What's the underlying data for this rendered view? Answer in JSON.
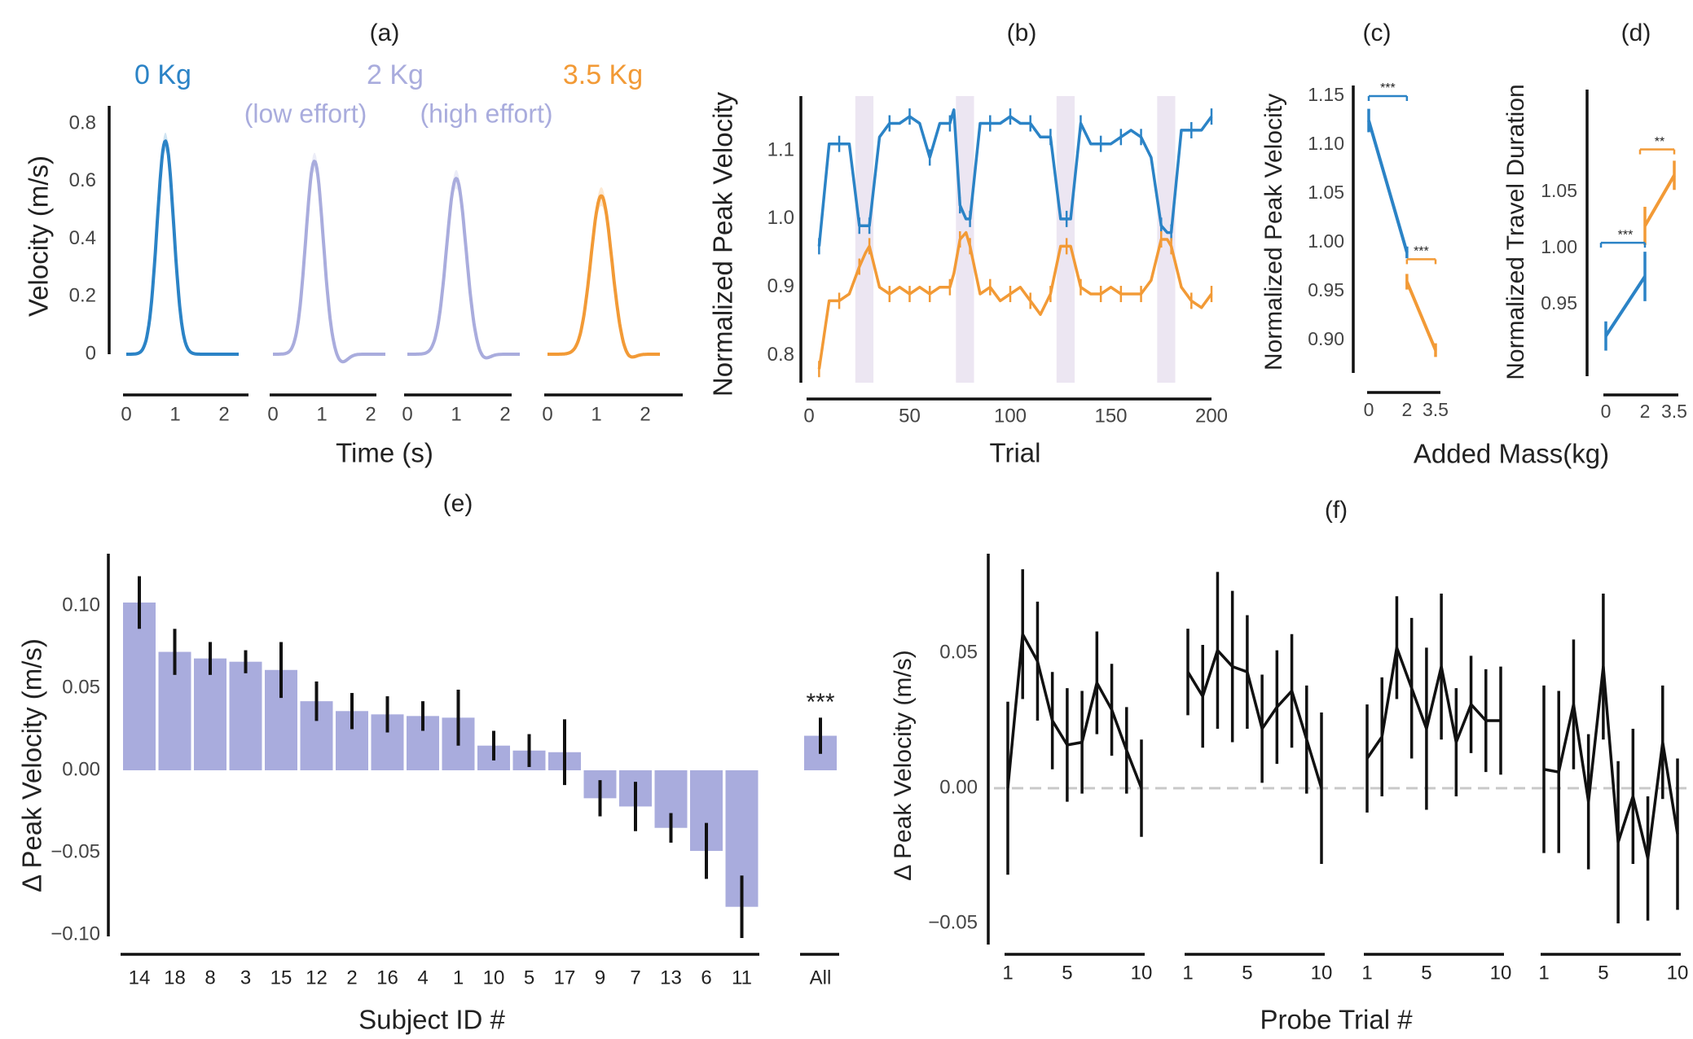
{
  "colors": {
    "blue": "#2b83c6",
    "lavender": "#a9acdd",
    "orange": "#f29a36",
    "bar": "#a9acdd",
    "black": "#111111",
    "grey": "#c8c8c8",
    "shade": "#ece6f2"
  },
  "chart_data": [
    {
      "panel": "(a)",
      "type": "line",
      "xlabel": "Time (s)",
      "ylabel": "Velocity (m/s)",
      "yticks": [
        "0",
        "0.2",
        "0.4",
        "0.6",
        "0.8"
      ],
      "xticks": [
        "0",
        "1",
        "2"
      ],
      "ylim": [
        0,
        0.8
      ],
      "xlim": [
        0,
        2.5
      ],
      "series": [
        {
          "name": "0 Kg",
          "subtitle": "",
          "color": "#2b83c6",
          "peak": 0.74,
          "peak_time": 0.8,
          "width": 0.24,
          "undershoot": 0.0
        },
        {
          "name": "2 Kg",
          "subtitle": "(low effort)",
          "color": "#a9acdd",
          "peak": 0.67,
          "peak_time": 0.85,
          "width": 0.25,
          "undershoot": 0.03
        },
        {
          "name": "",
          "subtitle": "(high effort)",
          "color": "#a9acdd",
          "peak": 0.61,
          "peak_time": 1.0,
          "width": 0.28,
          "undershoot": 0.02
        },
        {
          "name": "3.5 Kg",
          "subtitle": "",
          "color": "#f29a36",
          "peak": 0.55,
          "peak_time": 1.1,
          "width": 0.3,
          "undershoot": 0.02
        }
      ]
    },
    {
      "panel": "(b)",
      "type": "line",
      "xlabel": "Trial",
      "ylabel": "Normalized Peak Velocity",
      "xticks": [
        "0",
        "50",
        "100",
        "150",
        "200"
      ],
      "yticks": [
        "0.8",
        "0.9",
        "1.0",
        "1.1"
      ],
      "xlim": [
        0,
        200
      ],
      "ylim": [
        0.76,
        1.18
      ],
      "shaded_ranges": [
        [
          23,
          32
        ],
        [
          73,
          82
        ],
        [
          123,
          132
        ],
        [
          173,
          182
        ]
      ],
      "series": [
        {
          "name": "0 Kg",
          "color": "#2b83c6",
          "x": [
            5,
            10,
            15,
            20,
            25,
            28,
            30,
            35,
            40,
            45,
            50,
            55,
            60,
            65,
            70,
            72,
            75,
            78,
            80,
            85,
            90,
            95,
            100,
            105,
            110,
            115,
            120,
            125,
            128,
            130,
            135,
            140,
            145,
            150,
            155,
            160,
            165,
            170,
            175,
            178,
            180,
            185,
            190,
            195,
            200
          ],
          "y": [
            0.96,
            1.11,
            1.11,
            1.11,
            0.99,
            0.99,
            0.99,
            1.12,
            1.14,
            1.14,
            1.15,
            1.14,
            1.09,
            1.14,
            1.14,
            1.16,
            1.02,
            1.0,
            1.0,
            1.14,
            1.14,
            1.14,
            1.15,
            1.14,
            1.14,
            1.12,
            1.12,
            1.0,
            1.0,
            1.0,
            1.14,
            1.11,
            1.11,
            1.11,
            1.12,
            1.13,
            1.12,
            1.09,
            0.99,
            0.98,
            0.98,
            1.13,
            1.13,
            1.13,
            1.15
          ]
        },
        {
          "name": "3.5 Kg",
          "color": "#f29a36",
          "x": [
            5,
            10,
            15,
            20,
            25,
            28,
            30,
            35,
            40,
            45,
            50,
            55,
            60,
            65,
            70,
            72,
            75,
            78,
            80,
            85,
            90,
            95,
            100,
            105,
            110,
            115,
            120,
            125,
            128,
            130,
            135,
            140,
            145,
            150,
            155,
            160,
            165,
            170,
            175,
            178,
            180,
            185,
            190,
            195,
            200
          ],
          "y": [
            0.78,
            0.88,
            0.88,
            0.89,
            0.93,
            0.95,
            0.96,
            0.9,
            0.89,
            0.9,
            0.89,
            0.9,
            0.89,
            0.9,
            0.9,
            0.92,
            0.97,
            0.98,
            0.96,
            0.89,
            0.9,
            0.88,
            0.89,
            0.9,
            0.88,
            0.86,
            0.89,
            0.96,
            0.96,
            0.96,
            0.9,
            0.89,
            0.89,
            0.9,
            0.89,
            0.89,
            0.89,
            0.91,
            0.97,
            0.97,
            0.96,
            0.9,
            0.88,
            0.87,
            0.89
          ]
        }
      ]
    },
    {
      "panel": "(c)",
      "type": "line",
      "xlabel": "",
      "ylabel": "Normalized Peak Velocity",
      "xticks": [
        "0",
        "2",
        "3.5"
      ],
      "yticks": [
        "0.90",
        "0.95",
        "1.00",
        "1.05",
        "1.10",
        "1.15"
      ],
      "xlim": [
        0,
        3.5
      ],
      "ylim": [
        0.87,
        1.155
      ],
      "series": [
        {
          "name": "0 Kg to 2 Kg",
          "color": "#2b83c6",
          "x": [
            0,
            2
          ],
          "y": [
            1.125,
            0.99
          ],
          "err": [
            0.012,
            0.006
          ]
        },
        {
          "name": "2 Kg to 3.5 Kg",
          "color": "#f29a36",
          "x": [
            2,
            3.5
          ],
          "y": [
            0.96,
            0.89
          ],
          "err": [
            0.008,
            0.007
          ]
        }
      ],
      "annotations": [
        {
          "text": "***",
          "x1": 0,
          "x2": 2,
          "y": 1.15,
          "color": "#2b83c6"
        },
        {
          "text": "***",
          "x1": 2,
          "x2": 3.5,
          "y": 0.983,
          "color": "#f29a36"
        }
      ]
    },
    {
      "panel": "(d)",
      "type": "line",
      "xlabel": "Added Mass(kg)",
      "ylabel": "Normalized Travel Duration",
      "xticks": [
        "0",
        "2",
        "3.5"
      ],
      "yticks": [
        "0.95",
        "1.00",
        "1.05"
      ],
      "xlim": [
        0,
        3.5
      ],
      "ylim": [
        0.9,
        1.105
      ],
      "series": [
        {
          "name": "0 Kg to 2 Kg",
          "color": "#2b83c6",
          "x": [
            0,
            2
          ],
          "y": [
            0.922,
            0.975
          ],
          "err": [
            0.013,
            0.022
          ]
        },
        {
          "name": "2 Kg to 3.5 Kg",
          "color": "#f29a36",
          "x": [
            2,
            3.5
          ],
          "y": [
            1.02,
            1.065
          ],
          "err": [
            0.017,
            0.013
          ]
        }
      ],
      "annotations": [
        {
          "text": "***",
          "x1": 0,
          "x2": 2,
          "y": 1.005,
          "color": "#2b83c6"
        },
        {
          "text": "**",
          "x1": 2,
          "x2": 3.5,
          "y": 1.088,
          "color": "#f29a36"
        }
      ]
    },
    {
      "panel": "(e)",
      "type": "bar",
      "xlabel": "Subject ID #",
      "ylabel": "Δ Peak Velocity (m/s)",
      "yticks": [
        "−0.10",
        "−0.05",
        "0.00",
        "0.05",
        "0.10"
      ],
      "ylim": [
        -0.105,
        0.13
      ],
      "categories": [
        "14",
        "18",
        "8",
        "3",
        "15",
        "12",
        "2",
        "16",
        "4",
        "1",
        "10",
        "5",
        "17",
        "9",
        "7",
        "13",
        "6",
        "11"
      ],
      "values": [
        0.102,
        0.072,
        0.068,
        0.066,
        0.061,
        0.042,
        0.036,
        0.034,
        0.033,
        0.032,
        0.015,
        0.012,
        0.011,
        -0.017,
        -0.022,
        -0.035,
        -0.049,
        -0.083
      ],
      "errors": [
        0.016,
        0.014,
        0.01,
        0.007,
        0.017,
        0.012,
        0.011,
        0.011,
        0.009,
        0.017,
        0.009,
        0.01,
        0.02,
        0.011,
        0.015,
        0.009,
        0.017,
        0.019
      ],
      "summary": {
        "label": "All",
        "value": 0.021,
        "error": 0.011,
        "significance": "***"
      }
    },
    {
      "panel": "(f)",
      "type": "line",
      "xlabel": "Probe Trial #",
      "ylabel": "Δ Peak Velocity (m/s)",
      "yticks": [
        "−0.05",
        "0.00",
        "0.05"
      ],
      "xticks": [
        "1",
        "5",
        "10"
      ],
      "ylim": [
        -0.055,
        0.085
      ],
      "xlim": [
        1,
        10
      ],
      "reference_line": 0,
      "blocks": [
        {
          "y": [
            0.0,
            0.057,
            0.047,
            0.025,
            0.016,
            0.017,
            0.039,
            0.029,
            0.014,
            0.0
          ],
          "err": [
            0.032,
            0.024,
            0.022,
            0.018,
            0.021,
            0.019,
            0.019,
            0.017,
            0.016,
            0.018
          ]
        },
        {
          "y": [
            0.043,
            0.034,
            0.051,
            0.045,
            0.043,
            0.022,
            0.03,
            0.036,
            0.018,
            0.0
          ],
          "err": [
            0.016,
            0.019,
            0.029,
            0.028,
            0.021,
            0.02,
            0.021,
            0.021,
            0.02,
            0.028
          ]
        },
        {
          "y": [
            0.011,
            0.019,
            0.052,
            0.037,
            0.022,
            0.045,
            0.017,
            0.031,
            0.025,
            0.025
          ],
          "err": [
            0.02,
            0.022,
            0.019,
            0.026,
            0.03,
            0.027,
            0.02,
            0.018,
            0.019,
            0.02
          ]
        },
        {
          "y": [
            0.007,
            0.006,
            0.031,
            -0.005,
            0.045,
            -0.02,
            -0.003,
            -0.026,
            0.017,
            -0.017
          ],
          "err": [
            0.031,
            0.03,
            0.024,
            0.025,
            0.027,
            0.03,
            0.025,
            0.023,
            0.021,
            0.028
          ]
        }
      ]
    }
  ]
}
